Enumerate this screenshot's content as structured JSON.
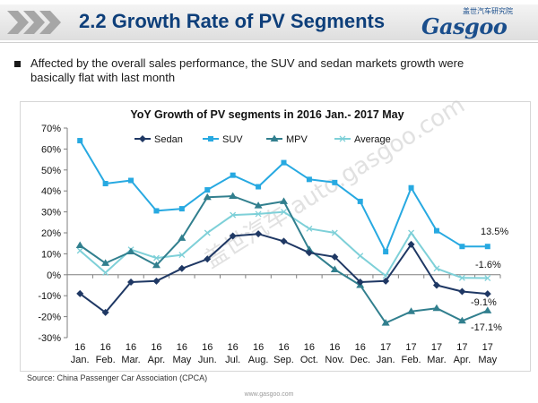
{
  "header": {
    "title": "2.2 Growth Rate of PV Segments",
    "logo_cn": "盖世汽车研究院",
    "logo_text": "Gasgoo"
  },
  "bullet": {
    "text": "Affected by the overall sales performance, the SUV and sedan markets growth were basically flat with last month"
  },
  "chart_data": {
    "type": "line",
    "title": "YoY Growth of PV segments in 2016 Jan.- 2017 May",
    "x_top": [
      "16",
      "16",
      "16",
      "16",
      "16",
      "16",
      "16",
      "16",
      "16",
      "16",
      "16",
      "16",
      "17",
      "17",
      "17",
      "17",
      "17"
    ],
    "x_bottom": [
      "Jan.",
      "Feb.",
      "Mar.",
      "Apr.",
      "May",
      "Jun.",
      "Jul.",
      "Aug.",
      "Sep.",
      "Oct.",
      "Nov.",
      "Dec.",
      "Jan.",
      "Feb.",
      "Mar.",
      "Apr.",
      "May"
    ],
    "ylim": [
      -30,
      70
    ],
    "yticks": [
      "70%",
      "60%",
      "50%",
      "40%",
      "30%",
      "20%",
      "10%",
      "0%",
      "-10%",
      "-20%",
      "-30%"
    ],
    "series": [
      {
        "name": "Sedan",
        "color": "#1f3864",
        "marker": "diamond",
        "values": [
          -9,
          -18,
          -3.5,
          -3,
          3,
          7.5,
          18.5,
          19.5,
          16,
          10.5,
          8.5,
          -3.5,
          -3,
          14.5,
          -5,
          -8,
          -9.1
        ]
      },
      {
        "name": "SUV",
        "color": "#27a9e1",
        "marker": "square",
        "values": [
          64,
          43.5,
          45,
          30.5,
          31.5,
          40.5,
          47.5,
          42,
          53.5,
          45.5,
          44,
          35,
          11,
          41.5,
          21,
          13.5,
          13.5
        ]
      },
      {
        "name": "MPV",
        "color": "#317f8e",
        "marker": "triangle",
        "values": [
          14,
          5.5,
          11,
          4.5,
          17.5,
          37,
          37.5,
          33,
          35,
          12,
          2.5,
          -5,
          -23,
          -17.5,
          -16,
          -22,
          -17.1
        ]
      },
      {
        "name": "Average",
        "color": "#7ed0d8",
        "marker": "x",
        "values": [
          11.5,
          1,
          12,
          8,
          9.5,
          20,
          28.5,
          29,
          30,
          22,
          20,
          9,
          -0.5,
          20,
          3,
          -1.5,
          -1.6
        ]
      }
    ],
    "end_labels": [
      "13.5%",
      "-1.6%",
      "-9.1%",
      "-17.1%"
    ]
  },
  "watermark": {
    "text": "盖世汽车 auto.gasgoo.com"
  },
  "source": {
    "text": "Source: China Passenger Car Association (CPCA)"
  },
  "footer": {
    "url": "www.gasgoo.com"
  }
}
